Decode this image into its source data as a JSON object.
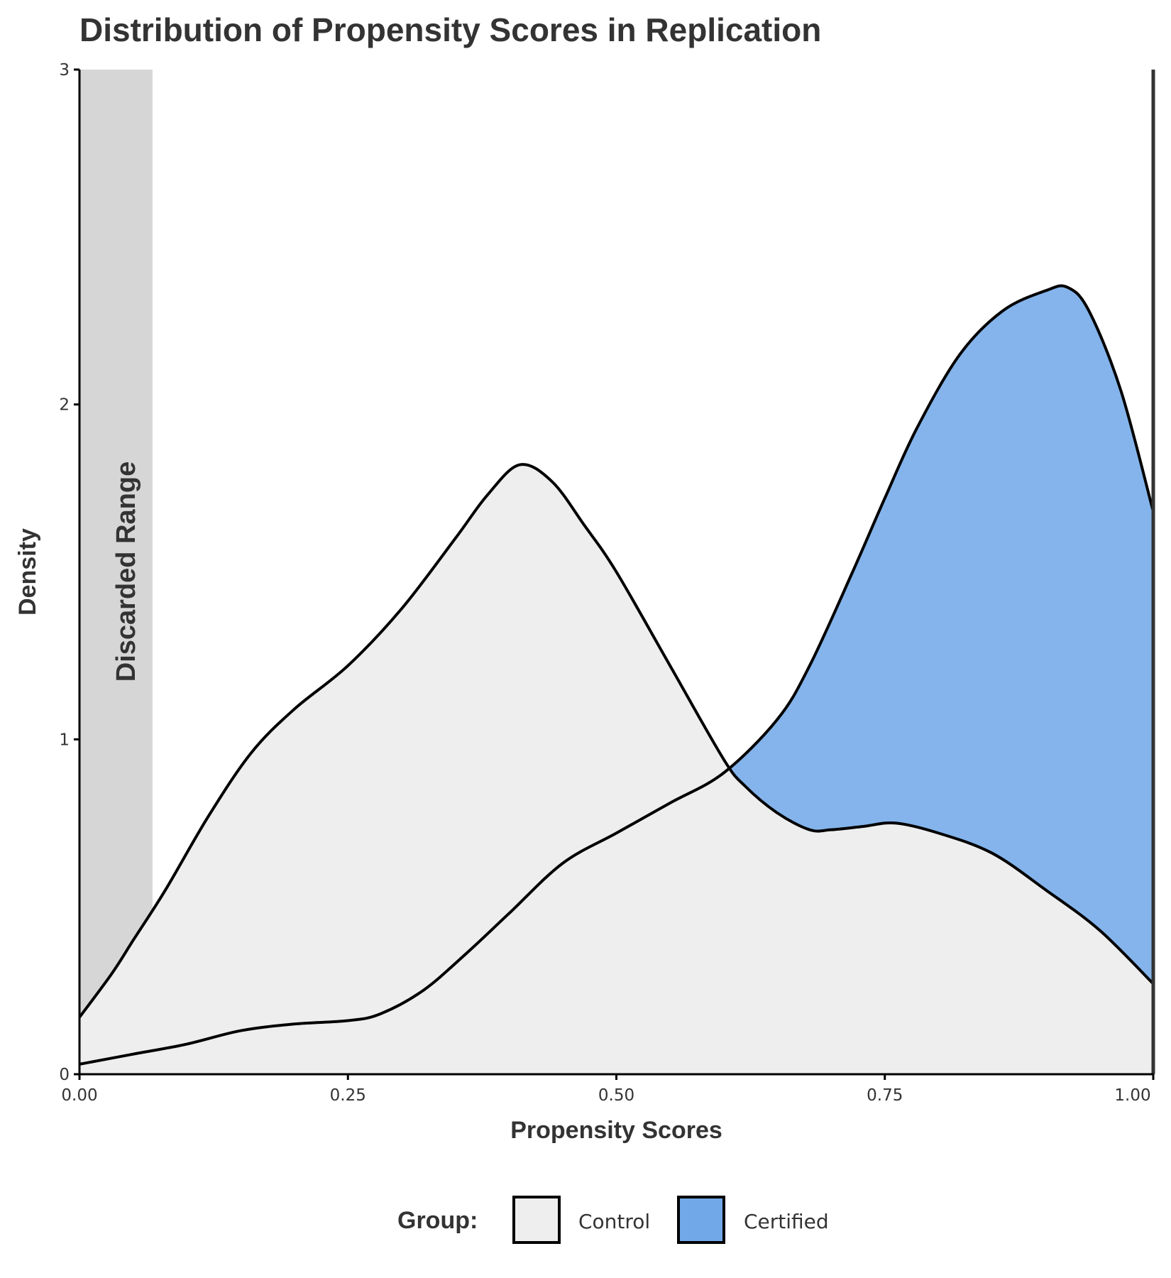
{
  "chart_data": {
    "type": "area",
    "title": "Distribution of Propensity Scores in Replication",
    "xlabel": "Propensity Scores",
    "ylabel": "Density",
    "xlim": [
      0,
      1
    ],
    "ylim": [
      0,
      3
    ],
    "x_ticks": [
      "0.00",
      "0.25",
      "0.50",
      "0.75",
      "1.00"
    ],
    "y_ticks": [
      "0",
      "1",
      "2",
      "3"
    ],
    "grid": false,
    "legend": {
      "title": "Group:",
      "position": "bottom"
    },
    "shaded_region": {
      "label": "Discarded Range",
      "x": [
        0,
        0.068
      ],
      "color": "#d6d6d6"
    },
    "reference_line": {
      "x": 1.0,
      "color": "#333333"
    },
    "series": [
      {
        "name": "Control",
        "color": "#eeeeee",
        "x": [
          0,
          0.03,
          0.05,
          0.08,
          0.12,
          0.16,
          0.2,
          0.25,
          0.3,
          0.35,
          0.38,
          0.41,
          0.44,
          0.47,
          0.5,
          0.55,
          0.6,
          0.62,
          0.65,
          0.68,
          0.7,
          0.73,
          0.76,
          0.8,
          0.85,
          0.9,
          0.95,
          1.0
        ],
        "y": [
          0.17,
          0.3,
          0.4,
          0.55,
          0.77,
          0.96,
          1.09,
          1.22,
          1.39,
          1.6,
          1.73,
          1.82,
          1.77,
          1.64,
          1.5,
          1.22,
          0.94,
          0.86,
          0.78,
          0.73,
          0.73,
          0.74,
          0.75,
          0.72,
          0.66,
          0.55,
          0.43,
          0.27
        ]
      },
      {
        "name": "Certified",
        "color": "#70a8e8",
        "x": [
          0,
          0.05,
          0.1,
          0.15,
          0.2,
          0.25,
          0.28,
          0.32,
          0.36,
          0.4,
          0.45,
          0.5,
          0.55,
          0.6,
          0.65,
          0.68,
          0.72,
          0.75,
          0.78,
          0.82,
          0.86,
          0.9,
          0.92,
          0.94,
          0.97,
          1.0
        ],
        "y": [
          0.03,
          0.06,
          0.09,
          0.13,
          0.15,
          0.16,
          0.18,
          0.25,
          0.36,
          0.48,
          0.63,
          0.72,
          0.81,
          0.9,
          1.06,
          1.22,
          1.5,
          1.72,
          1.93,
          2.15,
          2.28,
          2.34,
          2.35,
          2.28,
          2.04,
          1.68
        ]
      }
    ]
  }
}
